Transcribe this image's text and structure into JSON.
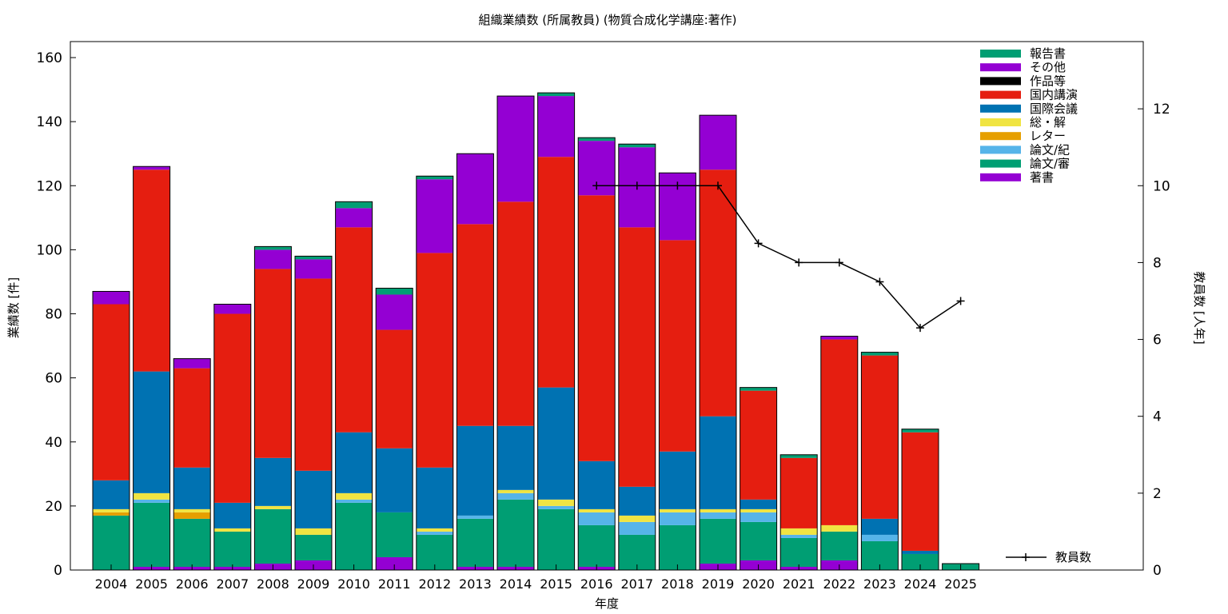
{
  "chart_data": {
    "type": "bar",
    "stacked": true,
    "title": "組織業績数 (所属教員) (物質合成化学講座:著作)",
    "xlabel": "年度",
    "ylabel": "業績数 [件]",
    "y2label": "教員数 [人年]",
    "ylim": [
      0,
      165
    ],
    "y2lim": [
      0,
      13.75
    ],
    "yticks": [
      "0",
      "20",
      "40",
      "60",
      "80",
      "100",
      "120",
      "140",
      "160"
    ],
    "y2ticks": [
      "0",
      "2",
      "4",
      "6",
      "8",
      "10",
      "12"
    ],
    "grid": false,
    "legend_position": "top-right",
    "categories": [
      "2004",
      "2005",
      "2006",
      "2007",
      "2008",
      "2009",
      "2010",
      "2011",
      "2012",
      "2013",
      "2014",
      "2015",
      "2016",
      "2017",
      "2018",
      "2019",
      "2020",
      "2021",
      "2022",
      "2023",
      "2024",
      "2025"
    ],
    "series": [
      {
        "name": "著書",
        "color": "#9400d3",
        "values": [
          0,
          1,
          1,
          1,
          2,
          3,
          0,
          4,
          0,
          1,
          1,
          0,
          1,
          0,
          0,
          2,
          3,
          1,
          3,
          0,
          0,
          0
        ]
      },
      {
        "name": "論文/審",
        "color": "#009e73",
        "values": [
          17,
          20,
          15,
          11,
          17,
          8,
          21,
          14,
          11,
          15,
          21,
          19,
          13,
          11,
          14,
          14,
          12,
          9,
          9,
          9,
          5,
          2
        ]
      },
      {
        "name": "論文/紀",
        "color": "#56b4e9",
        "values": [
          0,
          1,
          0,
          0,
          0,
          0,
          1,
          0,
          1,
          1,
          2,
          1,
          4,
          4,
          4,
          2,
          3,
          1,
          0,
          2,
          0,
          0
        ]
      },
      {
        "name": "レター",
        "color": "#e69f00",
        "values": [
          1,
          0,
          2,
          0,
          0,
          0,
          0,
          0,
          0,
          0,
          0,
          0,
          0,
          0,
          0,
          0,
          0,
          0,
          0,
          0,
          0,
          0
        ]
      },
      {
        "name": "総・解",
        "color": "#f0e442",
        "values": [
          1,
          2,
          1,
          1,
          1,
          2,
          2,
          0,
          1,
          0,
          1,
          2,
          1,
          2,
          1,
          1,
          1,
          2,
          2,
          0,
          0,
          0
        ]
      },
      {
        "name": "国際会議",
        "color": "#0072b2",
        "values": [
          9,
          38,
          13,
          8,
          15,
          18,
          19,
          20,
          19,
          28,
          20,
          35,
          15,
          9,
          18,
          29,
          3,
          0,
          0,
          5,
          1,
          0
        ]
      },
      {
        "name": "国内講演",
        "color": "#e51e10",
        "values": [
          55,
          63,
          31,
          59,
          59,
          60,
          64,
          37,
          67,
          63,
          70,
          72,
          83,
          81,
          66,
          77,
          34,
          22,
          58,
          51,
          37,
          0
        ]
      },
      {
        "name": "作品等",
        "color": "#000000",
        "values": [
          0,
          0,
          0,
          0,
          0,
          0,
          0,
          0,
          0,
          0,
          0,
          0,
          0,
          0,
          0,
          0,
          0,
          0,
          0,
          0,
          0,
          0
        ]
      },
      {
        "name": "その他",
        "color": "#9400d3",
        "values": [
          4,
          1,
          3,
          3,
          6,
          6,
          6,
          11,
          23,
          22,
          33,
          19,
          17,
          25,
          21,
          17,
          0,
          0,
          1,
          0,
          0,
          0
        ]
      },
      {
        "name": "報告書",
        "color": "#009e73",
        "values": [
          0,
          0,
          0,
          0,
          1,
          1,
          2,
          2,
          1,
          0,
          0,
          1,
          1,
          1,
          0,
          0,
          1,
          1,
          0,
          1,
          1,
          0
        ]
      }
    ],
    "line_series": {
      "name": "教員数",
      "color": "#000000",
      "axis": "right",
      "categories": [
        "2016",
        "2017",
        "2018",
        "2019",
        "2020",
        "2021",
        "2022",
        "2023",
        "2024",
        "2025"
      ],
      "values": [
        10,
        10,
        10,
        10,
        8.5,
        8,
        8,
        7.5,
        6.3,
        7
      ]
    }
  }
}
